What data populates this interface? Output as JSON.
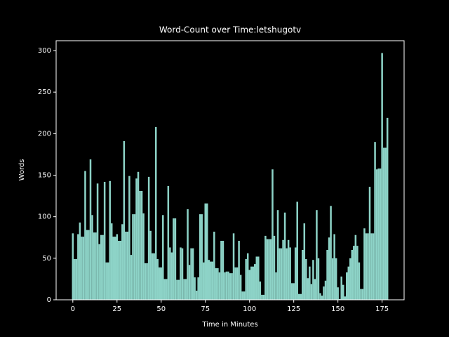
{
  "chart_data": {
    "type": "bar",
    "title": "Word-Count over Time:letshugotv",
    "xlabel": "Time in Minutes",
    "ylabel": "Words",
    "color": "#8dd3c7",
    "x": [
      0,
      1,
      2,
      3,
      4,
      5,
      6,
      7,
      8,
      9,
      10,
      11,
      12,
      13,
      14,
      15,
      16,
      17,
      18,
      19,
      20,
      21,
      22,
      23,
      24,
      25,
      26,
      27,
      28,
      29,
      30,
      31,
      32,
      33,
      34,
      35,
      36,
      37,
      38,
      39,
      40,
      41,
      42,
      43,
      44,
      45,
      46,
      47,
      48,
      49,
      50,
      51,
      52,
      53,
      54,
      55,
      56,
      57,
      58,
      59,
      60,
      61,
      62,
      63,
      64,
      65,
      66,
      67,
      68,
      69,
      70,
      71,
      72,
      73,
      74,
      75,
      76,
      77,
      78,
      79,
      80,
      81,
      82,
      83,
      84,
      85,
      86,
      87,
      88,
      89,
      90,
      91,
      92,
      93,
      94,
      95,
      96,
      97,
      98,
      99,
      100,
      101,
      102,
      103,
      104,
      105,
      106,
      107,
      108,
      109,
      110,
      111,
      112,
      113,
      114,
      115,
      116,
      117,
      118,
      119,
      120,
      121,
      122,
      123,
      124,
      125,
      126,
      127,
      128,
      129,
      130,
      131,
      132,
      133,
      134,
      135,
      136,
      137,
      138,
      139,
      140,
      141,
      142,
      143,
      144,
      145,
      146,
      147,
      148,
      149,
      150,
      151,
      152,
      153,
      154,
      155,
      156,
      157,
      158,
      159,
      160,
      161,
      162,
      163,
      164,
      165,
      166,
      167,
      168,
      169,
      170,
      171,
      172,
      173,
      174,
      175,
      176,
      177,
      178
    ],
    "values": [
      80,
      49,
      49,
      79,
      93,
      76,
      76,
      155,
      84,
      84,
      169,
      102,
      81,
      81,
      140,
      67,
      78,
      78,
      142,
      45,
      45,
      143,
      92,
      76,
      76,
      79,
      71,
      71,
      91,
      191,
      82,
      82,
      149,
      54,
      103,
      103,
      146,
      154,
      131,
      131,
      104,
      44,
      44,
      148,
      83,
      56,
      56,
      208,
      49,
      39,
      39,
      102,
      25,
      25,
      137,
      63,
      57,
      98,
      98,
      24,
      24,
      63,
      62,
      25,
      25,
      109,
      42,
      62,
      62,
      27,
      11,
      27,
      103,
      103,
      45,
      116,
      116,
      48,
      46,
      46,
      82,
      38,
      38,
      33,
      71,
      71,
      33,
      34,
      34,
      32,
      32,
      80,
      39,
      39,
      71,
      30,
      10,
      10,
      49,
      56,
      36,
      40,
      40,
      43,
      52,
      52,
      22,
      6,
      6,
      77,
      73,
      73,
      73,
      157,
      77,
      33,
      108,
      62,
      62,
      72,
      105,
      62,
      72,
      63,
      20,
      20,
      63,
      118,
      7,
      7,
      60,
      92,
      49,
      26,
      40,
      19,
      48,
      25,
      108,
      50,
      8,
      5,
      16,
      23,
      60,
      75,
      113,
      50,
      79,
      50,
      15,
      1,
      28,
      18,
      4,
      33,
      40,
      50,
      60,
      65,
      78,
      65,
      45,
      13,
      13,
      86,
      80,
      80,
      136,
      80,
      80,
      190,
      157,
      158,
      158,
      297,
      183,
      183,
      219
    ],
    "xlim": [
      -9.45,
      187.45
    ],
    "xticks": [
      0,
      25,
      50,
      75,
      100,
      125,
      150,
      175
    ],
    "ylim": [
      0,
      311.85
    ],
    "yticks": [
      0,
      50,
      100,
      150,
      200,
      250,
      300
    ]
  }
}
